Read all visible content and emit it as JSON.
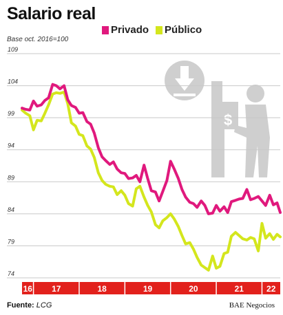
{
  "header": {
    "title": "Salario real",
    "subtitle": "Base oct. 2016=100"
  },
  "footer": {
    "source_label": "Fuente:",
    "source_value": "LCG",
    "credit": "BAE Negocios"
  },
  "colors": {
    "privado": "#e0197d",
    "publico": "#d4e61d",
    "axis_band": "#e2211c",
    "grid": "#c8c8c8",
    "watermark": "#cfcfcf"
  },
  "icons": [
    "down-arrow-icon",
    "atm-person-icon"
  ],
  "chart_data": {
    "type": "line",
    "title": "Salario real",
    "subtitle": "Base oct. 2016=100",
    "xlabel": "",
    "ylabel": "",
    "ylim": [
      74,
      109
    ],
    "yticks": [
      "109",
      "104",
      "99",
      "94",
      "89",
      "84",
      "79",
      "74"
    ],
    "ytick_values": [
      109,
      104,
      99,
      94,
      89,
      84,
      79,
      74
    ],
    "grid": true,
    "legend": "top",
    "x_start": 2016.75,
    "x_end": 2022.4,
    "year_labels": [
      {
        "label": "16",
        "from": 2016.75,
        "to": 2017.0
      },
      {
        "label": "17",
        "from": 2017.0,
        "to": 2018.0
      },
      {
        "label": "18",
        "from": 2018.0,
        "to": 2019.0
      },
      {
        "label": "19",
        "from": 2019.0,
        "to": 2020.0
      },
      {
        "label": "20",
        "from": 2020.0,
        "to": 2021.0
      },
      {
        "label": "21",
        "from": 2021.0,
        "to": 2022.0
      },
      {
        "label": "22",
        "from": 2022.0,
        "to": 2022.4
      }
    ],
    "series": [
      {
        "name": "Privado",
        "color": "#e0197d",
        "values": [
          [
            2016.75,
            100.5
          ],
          [
            2016.83,
            100.3
          ],
          [
            2016.92,
            100.2
          ],
          [
            2017.0,
            101.6
          ],
          [
            2017.08,
            100.8
          ],
          [
            2017.17,
            101.0
          ],
          [
            2017.25,
            101.7
          ],
          [
            2017.33,
            102.1
          ],
          [
            2017.42,
            104.2
          ],
          [
            2017.5,
            104.0
          ],
          [
            2017.58,
            103.5
          ],
          [
            2017.67,
            104.0
          ],
          [
            2017.75,
            101.8
          ],
          [
            2017.83,
            100.9
          ],
          [
            2017.92,
            100.6
          ],
          [
            2018.0,
            99.7
          ],
          [
            2018.08,
            99.8
          ],
          [
            2018.17,
            98.4
          ],
          [
            2018.25,
            98.0
          ],
          [
            2018.33,
            96.6
          ],
          [
            2018.42,
            94.3
          ],
          [
            2018.5,
            92.9
          ],
          [
            2018.58,
            92.3
          ],
          [
            2018.67,
            91.7
          ],
          [
            2018.75,
            92.1
          ],
          [
            2018.83,
            91.0
          ],
          [
            2018.92,
            90.4
          ],
          [
            2019.0,
            90.3
          ],
          [
            2019.08,
            89.5
          ],
          [
            2019.17,
            89.6
          ],
          [
            2019.25,
            90.0
          ],
          [
            2019.33,
            89.0
          ],
          [
            2019.42,
            91.6
          ],
          [
            2019.5,
            89.5
          ],
          [
            2019.58,
            87.6
          ],
          [
            2019.67,
            87.4
          ],
          [
            2019.75,
            86.0
          ],
          [
            2019.83,
            87.5
          ],
          [
            2019.92,
            89.2
          ],
          [
            2020.0,
            92.2
          ],
          [
            2020.08,
            91.0
          ],
          [
            2020.17,
            89.5
          ],
          [
            2020.25,
            87.8
          ],
          [
            2020.33,
            86.6
          ],
          [
            2020.42,
            85.8
          ],
          [
            2020.5,
            85.6
          ],
          [
            2020.58,
            85.0
          ],
          [
            2020.67,
            86.0
          ],
          [
            2020.75,
            85.3
          ],
          [
            2020.83,
            84.0
          ],
          [
            2020.92,
            84.1
          ],
          [
            2021.0,
            85.3
          ],
          [
            2021.08,
            84.4
          ],
          [
            2021.17,
            85.1
          ],
          [
            2021.25,
            84.2
          ],
          [
            2021.33,
            85.9
          ],
          [
            2021.42,
            86.1
          ],
          [
            2021.5,
            86.3
          ],
          [
            2021.58,
            86.4
          ],
          [
            2021.67,
            87.8
          ],
          [
            2021.75,
            86.2
          ],
          [
            2021.83,
            86.4
          ],
          [
            2021.92,
            86.7
          ],
          [
            2022.0,
            86.0
          ],
          [
            2022.08,
            85.3
          ],
          [
            2022.17,
            86.9
          ],
          [
            2022.25,
            85.4
          ],
          [
            2022.33,
            85.7
          ],
          [
            2022.4,
            84.2
          ]
        ]
      },
      {
        "name": "Público",
        "color": "#d4e61d",
        "values": [
          [
            2016.75,
            100.2
          ],
          [
            2016.83,
            99.7
          ],
          [
            2016.92,
            99.3
          ],
          [
            2017.0,
            97.1
          ],
          [
            2017.08,
            98.6
          ],
          [
            2017.17,
            98.5
          ],
          [
            2017.25,
            99.7
          ],
          [
            2017.33,
            101.0
          ],
          [
            2017.42,
            102.7
          ],
          [
            2017.5,
            102.9
          ],
          [
            2017.58,
            102.8
          ],
          [
            2017.67,
            103.0
          ],
          [
            2017.75,
            101.2
          ],
          [
            2017.83,
            98.2
          ],
          [
            2017.92,
            97.7
          ],
          [
            2018.0,
            96.4
          ],
          [
            2018.08,
            96.2
          ],
          [
            2018.17,
            94.6
          ],
          [
            2018.25,
            94.1
          ],
          [
            2018.33,
            92.8
          ],
          [
            2018.42,
            90.4
          ],
          [
            2018.5,
            89.2
          ],
          [
            2018.58,
            88.6
          ],
          [
            2018.67,
            88.3
          ],
          [
            2018.75,
            88.2
          ],
          [
            2018.83,
            87.0
          ],
          [
            2018.92,
            87.6
          ],
          [
            2019.0,
            86.9
          ],
          [
            2019.08,
            85.6
          ],
          [
            2019.17,
            85.2
          ],
          [
            2019.25,
            87.9
          ],
          [
            2019.33,
            88.3
          ],
          [
            2019.42,
            86.6
          ],
          [
            2019.5,
            85.3
          ],
          [
            2019.58,
            84.3
          ],
          [
            2019.67,
            82.3
          ],
          [
            2019.75,
            81.8
          ],
          [
            2019.83,
            82.9
          ],
          [
            2019.92,
            83.4
          ],
          [
            2020.0,
            84.0
          ],
          [
            2020.08,
            83.2
          ],
          [
            2020.17,
            82.0
          ],
          [
            2020.25,
            80.6
          ],
          [
            2020.33,
            79.3
          ],
          [
            2020.42,
            79.5
          ],
          [
            2020.5,
            78.5
          ],
          [
            2020.58,
            77.2
          ],
          [
            2020.67,
            76.0
          ],
          [
            2020.75,
            75.6
          ],
          [
            2020.83,
            75.2
          ],
          [
            2020.92,
            77.4
          ],
          [
            2021.0,
            75.5
          ],
          [
            2021.08,
            75.8
          ],
          [
            2021.17,
            77.8
          ],
          [
            2021.25,
            78.0
          ],
          [
            2021.33,
            80.5
          ],
          [
            2021.42,
            81.1
          ],
          [
            2021.5,
            80.6
          ],
          [
            2021.58,
            80.1
          ],
          [
            2021.67,
            79.9
          ],
          [
            2021.75,
            80.3
          ],
          [
            2021.83,
            80.1
          ],
          [
            2021.92,
            78.2
          ],
          [
            2022.0,
            82.5
          ],
          [
            2022.08,
            80.2
          ],
          [
            2022.17,
            80.9
          ],
          [
            2022.25,
            80.0
          ],
          [
            2022.33,
            80.8
          ],
          [
            2022.4,
            80.4
          ]
        ]
      }
    ]
  }
}
